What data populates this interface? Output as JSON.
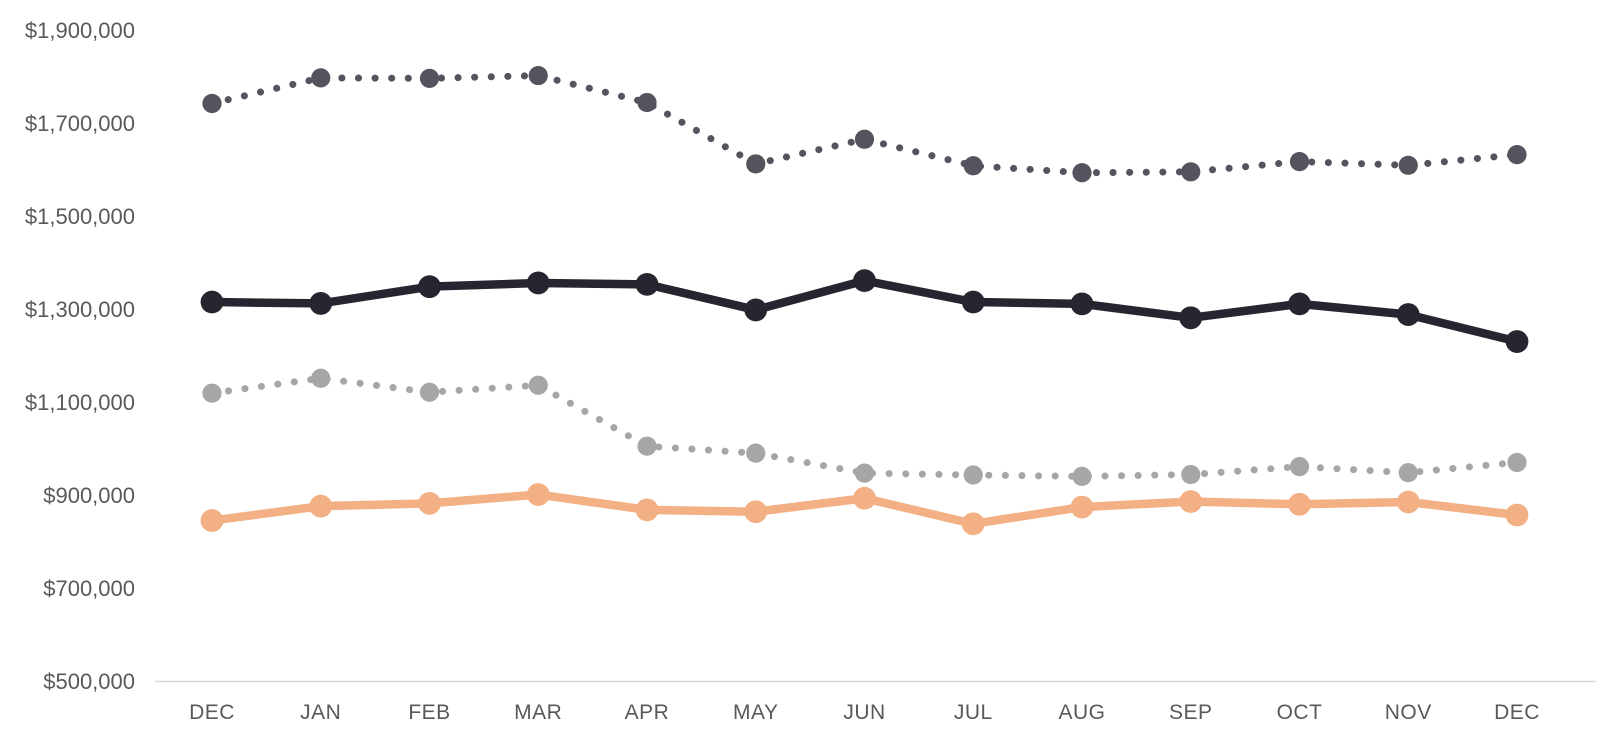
{
  "chart_data": {
    "type": "line",
    "categories": [
      "DEC",
      "JAN",
      "FEB",
      "MAR",
      "APR",
      "MAY",
      "JUN",
      "JUL",
      "AUG",
      "SEP",
      "OCT",
      "NOV",
      "DEC"
    ],
    "series": [
      {
        "name": "upper-dark-dotted-series",
        "color": "#54545E",
        "line_style": "dotted",
        "values": [
          1742000,
          1797000,
          1796000,
          1802000,
          1744000,
          1612000,
          1665000,
          1608000,
          1593000,
          1595000,
          1617000,
          1609000,
          1632000
        ]
      },
      {
        "name": "black-solid-series",
        "color": "#262630",
        "line_style": "solid",
        "values": [
          1315000,
          1312000,
          1348000,
          1356000,
          1353000,
          1298000,
          1361000,
          1315000,
          1311000,
          1281000,
          1311000,
          1288000,
          1230000
        ]
      },
      {
        "name": "gray-dotted-series",
        "color": "#A6A6A6",
        "line_style": "dotted",
        "values": [
          1119000,
          1151000,
          1121000,
          1136000,
          1005000,
          990000,
          947000,
          943000,
          940000,
          944000,
          961000,
          948000,
          970000
        ]
      },
      {
        "name": "peach-solid-series",
        "color": "#F2B084",
        "line_style": "solid",
        "values": [
          845000,
          876000,
          882000,
          901000,
          868000,
          864000,
          893000,
          838000,
          874000,
          886000,
          880000,
          885000,
          857000
        ]
      }
    ],
    "ylim": [
      500000,
      1900000
    ],
    "y_tick_values": [
      1900000,
      1700000,
      1500000,
      1300000,
      1100000,
      900000,
      700000,
      500000
    ],
    "y_tick_labels": [
      "$1,900,000",
      "$1,700,000",
      "$1,500,000",
      "$1,300,000",
      "$1,100,000",
      "$900,000",
      "$700,000",
      "$500,000"
    ],
    "grid": "off",
    "legend": "none",
    "axis_line_color": "#D9D9D9",
    "label_color": "#595959",
    "background_color": "#FFFFFF"
  }
}
